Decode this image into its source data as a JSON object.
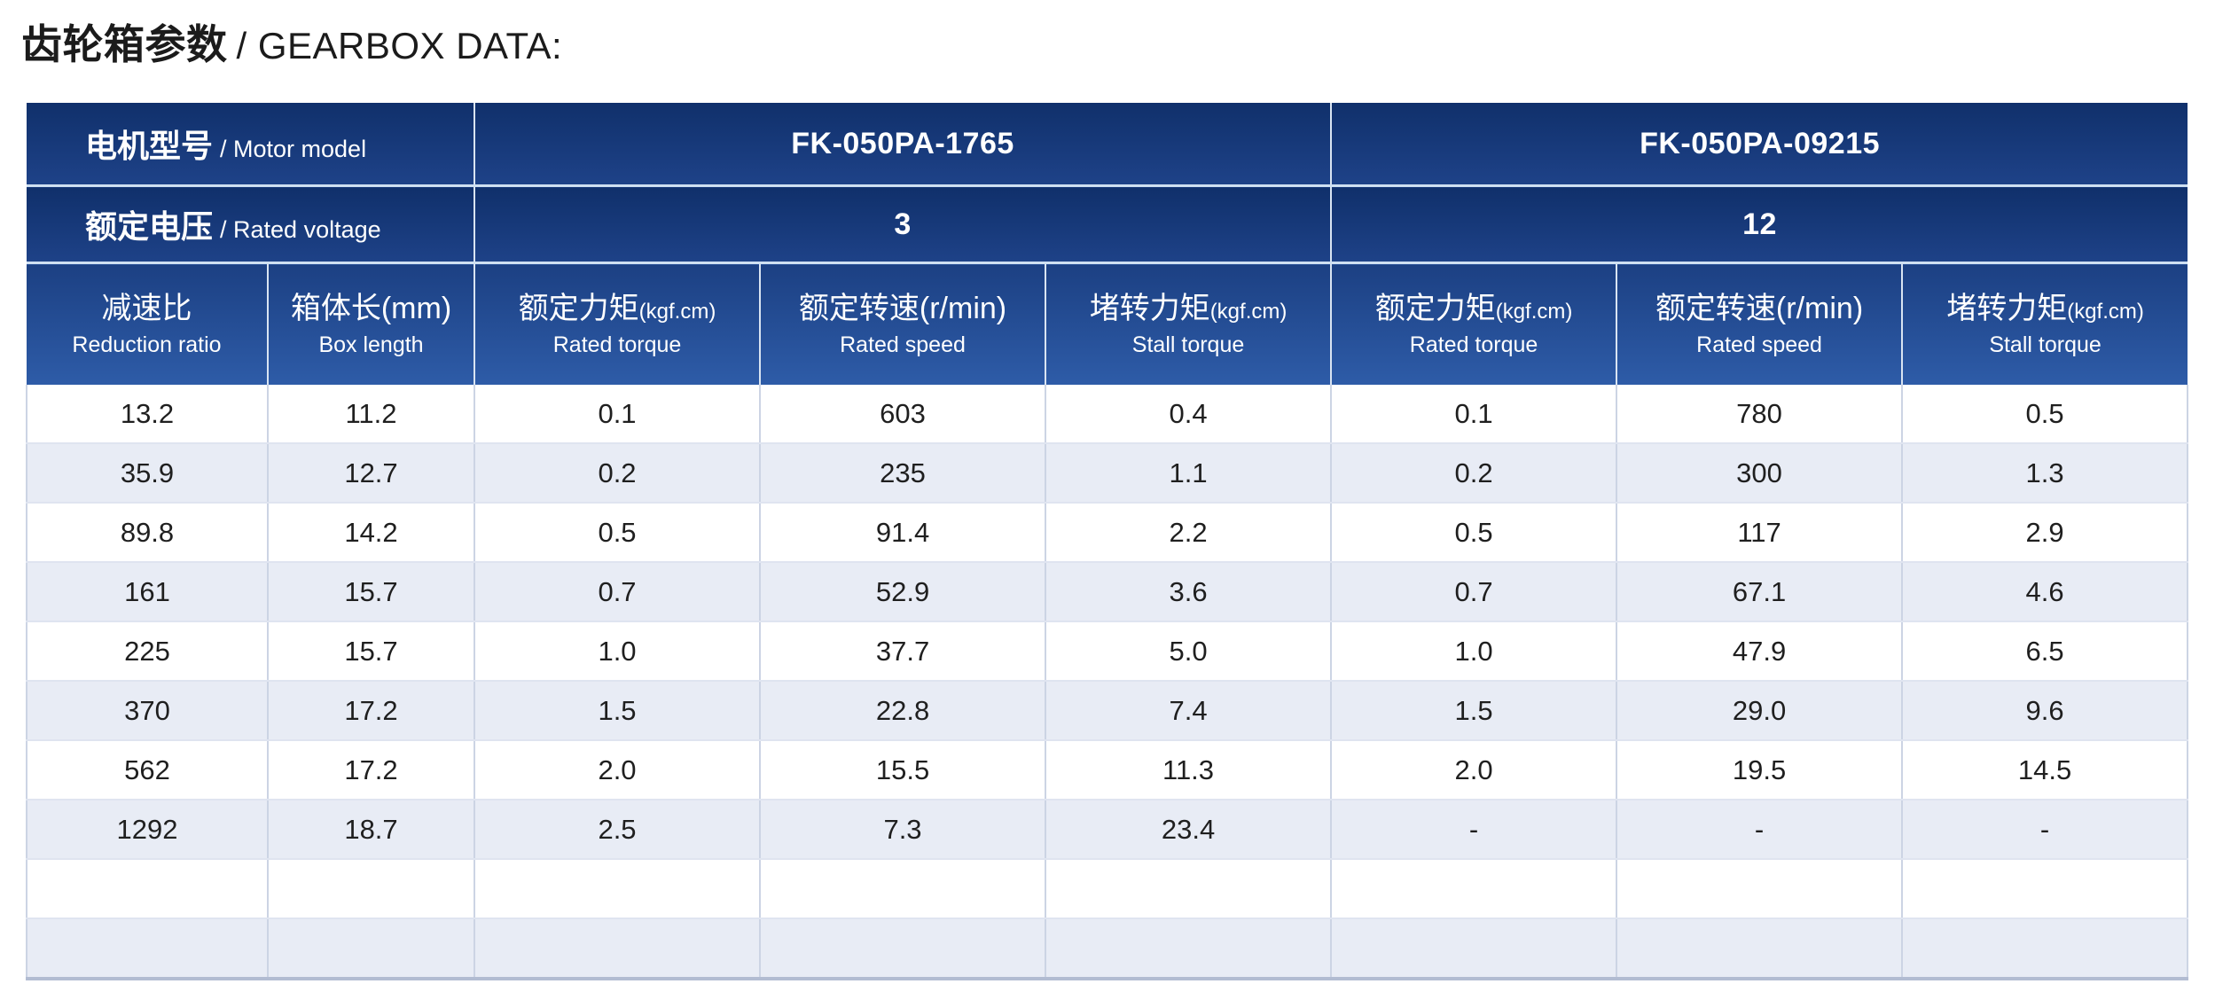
{
  "title": {
    "zh": "齿轮箱参数",
    "en": "/ GEARBOX DATA:"
  },
  "table": {
    "motor_model_label": {
      "zh": "电机型号",
      "en": "/ Motor model"
    },
    "rated_voltage_label": {
      "zh": "额定电压",
      "en": "/ Rated voltage"
    },
    "models": [
      {
        "name": "FK-050PA-1765",
        "voltage": "3"
      },
      {
        "name": "FK-050PA-09215",
        "voltage": "12"
      }
    ],
    "base_columns": [
      {
        "main": "减速比",
        "unit": "",
        "sub": "Reduction ratio"
      },
      {
        "main": "箱体长(mm)",
        "unit": "",
        "sub": "Box length"
      }
    ],
    "model_columns": [
      {
        "main": "额定力矩",
        "unit": "(kgf.cm)",
        "sub": "Rated torque"
      },
      {
        "main": "额定转速(r/min)",
        "unit": "",
        "sub": "Rated speed"
      },
      {
        "main": "堵转力矩",
        "unit": "(kgf.cm)",
        "sub": "Stall torque"
      }
    ],
    "rows": [
      [
        "13.2",
        "11.2",
        "0.1",
        "603",
        "0.4",
        "0.1",
        "780",
        "0.5"
      ],
      [
        "35.9",
        "12.7",
        "0.2",
        "235",
        "1.1",
        "0.2",
        "300",
        "1.3"
      ],
      [
        "89.8",
        "14.2",
        "0.5",
        "91.4",
        "2.2",
        "0.5",
        "117",
        "2.9"
      ],
      [
        "161",
        "15.7",
        "0.7",
        "52.9",
        "3.6",
        "0.7",
        "67.1",
        "4.6"
      ],
      [
        "225",
        "15.7",
        "1.0",
        "37.7",
        "5.0",
        "1.0",
        "47.9",
        "6.5"
      ],
      [
        "370",
        "17.2",
        "1.5",
        "22.8",
        "7.4",
        "1.5",
        "29.0",
        "9.6"
      ],
      [
        "562",
        "17.2",
        "2.0",
        "15.5",
        "11.3",
        "2.0",
        "19.5",
        "14.5"
      ],
      [
        "1292",
        "18.7",
        "2.5",
        "7.3",
        "23.4",
        "-",
        "-",
        "-"
      ],
      [
        "",
        "",
        "",
        "",
        "",
        "",
        "",
        ""
      ],
      [
        "",
        "",
        "",
        "",
        "",
        "",
        "",
        ""
      ]
    ],
    "colors": {
      "header_navy_top": "#10306b",
      "header_navy_bottom": "#1e4288",
      "header_blue_top": "#1c4083",
      "header_blue_bottom": "#2e5ca8",
      "row_alt": "#e8ecf5",
      "grid_line": "#ccd4e4",
      "header_text": "#ffffff",
      "body_text": "#1f1f1f"
    }
  }
}
